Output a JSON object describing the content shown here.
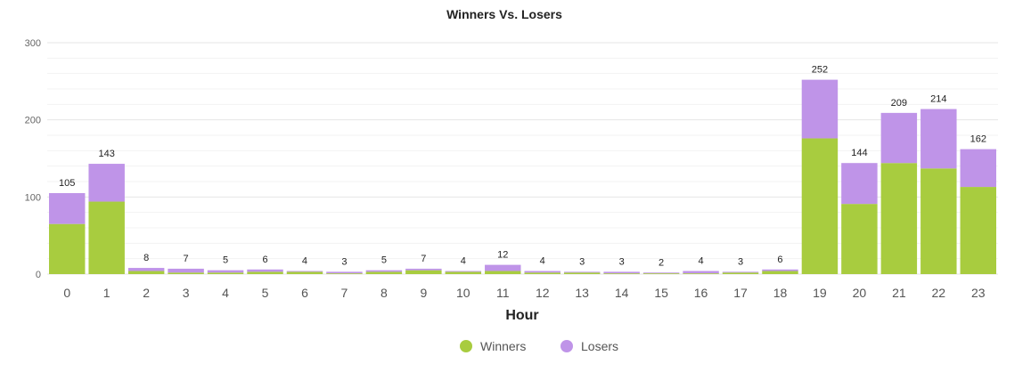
{
  "chart_data": {
    "type": "bar",
    "stacked": true,
    "title": "Winners Vs. Losers",
    "xlabel": "Hour",
    "ylabel": "",
    "ylim": [
      0,
      300
    ],
    "yticks": [
      0,
      100,
      200,
      300
    ],
    "grid": true,
    "legend_position": "bottom-center",
    "categories": [
      "0",
      "1",
      "2",
      "3",
      "4",
      "5",
      "6",
      "7",
      "8",
      "9",
      "10",
      "11",
      "12",
      "13",
      "14",
      "15",
      "16",
      "17",
      "18",
      "19",
      "20",
      "21",
      "22",
      "23"
    ],
    "totals": [
      105,
      143,
      8,
      7,
      5,
      6,
      4,
      3,
      5,
      7,
      4,
      12,
      4,
      3,
      3,
      2,
      4,
      3,
      6,
      252,
      144,
      209,
      214,
      162
    ],
    "series": [
      {
        "name": "Winners",
        "color": "#a8cc3f",
        "values": [
          65,
          94,
          4,
          2,
          2,
          3,
          3,
          1,
          3,
          5,
          3,
          4,
          2,
          2,
          1,
          1,
          1,
          2,
          4,
          176,
          91,
          144,
          137,
          113
        ]
      },
      {
        "name": "Losers",
        "color": "#bf94e8",
        "values": [
          40,
          49,
          4,
          5,
          3,
          3,
          1,
          2,
          2,
          2,
          1,
          8,
          2,
          1,
          2,
          1,
          3,
          1,
          2,
          76,
          53,
          65,
          77,
          49
        ]
      }
    ]
  }
}
